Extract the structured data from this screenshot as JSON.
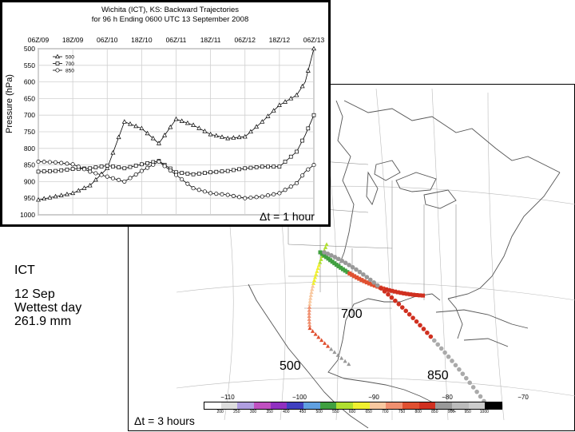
{
  "chart_data": [
    {
      "type": "line",
      "title": [
        "Wichita (ICT), KS: Backward Trajectories",
        "for 96 h Ending 0600 UTC 13 September 2008"
      ],
      "ylabel": "Pressure (hPa)",
      "xlabel": "",
      "x_ticks": [
        "06Z/09",
        "18Z/09",
        "06Z/10",
        "18Z/10",
        "06Z/11",
        "18Z/11",
        "06Z/12",
        "18Z/12",
        "06Z/13"
      ],
      "xlim": [
        -96,
        0
      ],
      "y_ticks": [
        500,
        550,
        600,
        650,
        700,
        750,
        800,
        850,
        900,
        950,
        1000
      ],
      "ylim": [
        1000,
        500
      ],
      "y_inverted": true,
      "grid": true,
      "legend_position": "top-left",
      "series": [
        {
          "name": "500",
          "marker": "triangle",
          "x": [
            -96,
            -90,
            -84,
            -78,
            -72,
            -66,
            -60,
            -54,
            -48,
            -42,
            -36,
            -30,
            -24,
            -18,
            -12,
            -6,
            -3,
            0
          ],
          "values": [
            955,
            945,
            935,
            912,
            860,
            720,
            740,
            785,
            712,
            730,
            758,
            770,
            765,
            720,
            670,
            640,
            600,
            500
          ]
        },
        {
          "name": "700",
          "marker": "square",
          "x": [
            -96,
            -90,
            -84,
            -78,
            -72,
            -66,
            -60,
            -54,
            -48,
            -42,
            -36,
            -30,
            -24,
            -18,
            -12,
            -6,
            -3,
            0
          ],
          "values": [
            870,
            868,
            862,
            860,
            852,
            860,
            848,
            838,
            872,
            878,
            872,
            868,
            860,
            855,
            855,
            810,
            760,
            700
          ]
        },
        {
          "name": "850",
          "marker": "circle",
          "x": [
            -96,
            -90,
            -84,
            -78,
            -72,
            -66,
            -60,
            -54,
            -48,
            -42,
            -36,
            -30,
            -24,
            -18,
            -12,
            -6,
            -3,
            0
          ],
          "values": [
            840,
            842,
            848,
            870,
            885,
            900,
            868,
            840,
            880,
            920,
            935,
            940,
            950,
            945,
            935,
            905,
            870,
            850
          ]
        }
      ]
    }
  ],
  "panel": {
    "station": "ICT",
    "note_lines": [
      "12 Sep",
      "Wettest day",
      "261.9 mm"
    ],
    "level_700": "700",
    "level_500": "500",
    "level_850": "850",
    "dt_chart": "Δt = 1 hour",
    "dt_map": "Δt = 3 hours"
  },
  "colorbar": {
    "top_labels": [
      "−110",
      "−100",
      "−90",
      "−80",
      "−70"
    ],
    "tick_labels": [
      "200",
      "250",
      "300",
      "350",
      "400",
      "450",
      "500",
      "550",
      "600",
      "650",
      "700",
      "750",
      "800",
      "850",
      "900",
      "950",
      "1000"
    ],
    "colors": [
      "#ffffff",
      "#dddddd",
      "#b09ee0",
      "#c050c0",
      "#9030c0",
      "#4040c0",
      "#60a0e0",
      "#40a040",
      "#b0e030",
      "#f0f030",
      "#f8c8a0",
      "#f09070",
      "#e05030",
      "#d03020",
      "#999999",
      "#bbbbbb",
      "#cccccc",
      "#000000"
    ]
  },
  "map": {
    "trajectory_500_colors": [
      "#b0e030",
      "#f0f030",
      "#f8c8a0",
      "#f09070",
      "#e05030",
      "#999999"
    ],
    "trajectory_700_colors": [
      "#40a040",
      "#e05030",
      "#d03020"
    ],
    "trajectory_850_colors": [
      "#999999",
      "#d03020",
      "#aaaaaa"
    ]
  }
}
